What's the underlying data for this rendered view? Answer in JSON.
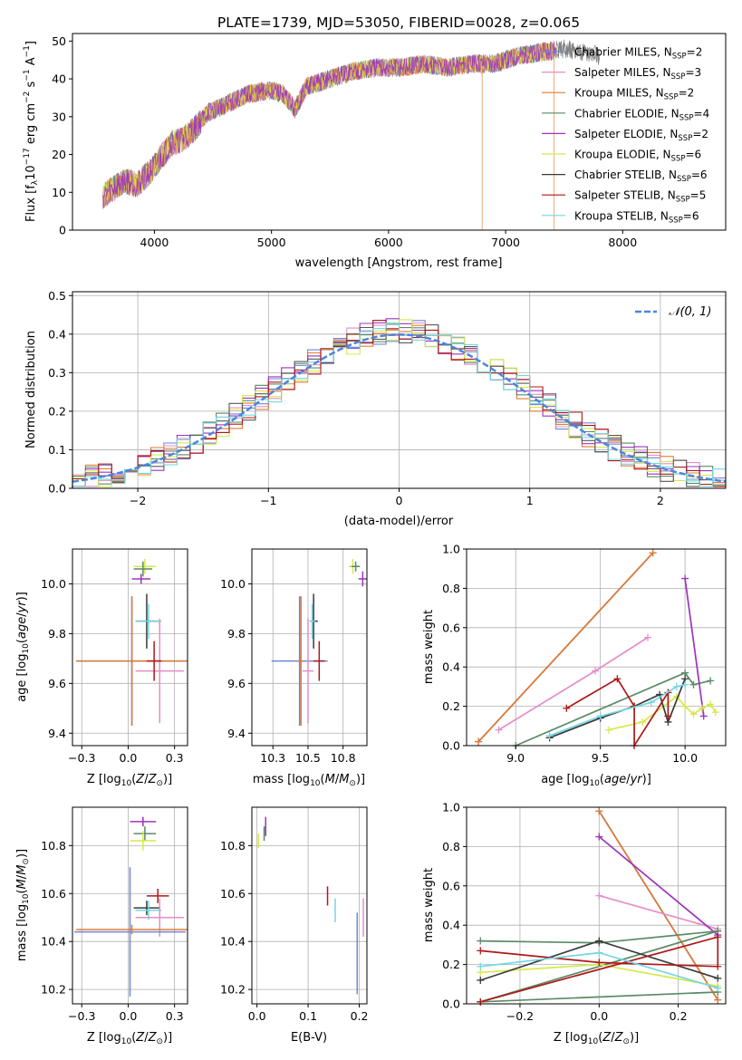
{
  "title": "PLATE=1739, MJD=53050, FIBERID=0028, z=0.065",
  "colors": {
    "c0": "#6f86d9",
    "c1": "#e58ec8",
    "c2": "#b5a03a",
    "c3": "#3c7a5c",
    "c4": "#9b34bd",
    "c5": "#d6e84a",
    "c6": "#3a3a3a",
    "c7": "#b01818",
    "c8": "#73d6e3",
    "orange": "#e07b33",
    "gray": "#7a7a7a",
    "grid": "#b0b0b0",
    "normal": "#4b86dc"
  },
  "legend_models": [
    {
      "base": "Chabrier MILES, N",
      "sub": "SSP",
      "val": "=2"
    },
    {
      "base": "Salpeter MILES, N",
      "sub": "SSP",
      "val": "=3"
    },
    {
      "base": "Kroupa MILES, N",
      "sub": "SSP",
      "val": "=2"
    },
    {
      "base": "Chabrier ELODIE, N",
      "sub": "SSP",
      "val": "=4"
    },
    {
      "base": "Salpeter ELODIE, N",
      "sub": "SSP",
      "val": "=2"
    },
    {
      "base": "Kroupa ELODIE, N",
      "sub": "SSP",
      "val": "=6"
    },
    {
      "base": "Chabrier STELIB, N",
      "sub": "SSP",
      "val": "=6"
    },
    {
      "base": "Salpeter STELIB, N",
      "sub": "SSP",
      "val": "=5"
    },
    {
      "base": "Kroupa STELIB, N",
      "sub": "SSP",
      "val": "=6"
    }
  ],
  "chart_data": [
    {
      "id": "spectrum",
      "type": "line",
      "xlabel": "wavelength [Angstrom, rest frame]",
      "ylabel": "Flux [f_λ 10^-17 erg cm^-2 s^-1 A^-1]",
      "xlim": [
        3300,
        8880
      ],
      "ylim": [
        0,
        52
      ],
      "xticks": [
        4000,
        5000,
        6000,
        7000,
        8000
      ],
      "yticks": [
        0,
        10,
        20,
        30,
        40,
        50
      ],
      "spectrum_knots": [
        [
          3560,
          9
        ],
        [
          3650,
          11
        ],
        [
          3750,
          13
        ],
        [
          3850,
          12
        ],
        [
          3950,
          15
        ],
        [
          4050,
          19
        ],
        [
          4150,
          23
        ],
        [
          4250,
          24
        ],
        [
          4350,
          27
        ],
        [
          4450,
          31
        ],
        [
          4600,
          33
        ],
        [
          4800,
          36
        ],
        [
          5000,
          37
        ],
        [
          5100,
          36
        ],
        [
          5200,
          32
        ],
        [
          5300,
          38
        ],
        [
          5500,
          40
        ],
        [
          5700,
          42
        ],
        [
          5900,
          43
        ],
        [
          6100,
          43
        ],
        [
          6300,
          44
        ],
        [
          6500,
          43
        ],
        [
          6700,
          44
        ],
        [
          6900,
          44
        ],
        [
          7100,
          46
        ],
        [
          7300,
          47
        ],
        [
          7500,
          48
        ],
        [
          7700,
          47
        ],
        [
          7800,
          46
        ]
      ],
      "dips": [
        {
          "x": 6800,
          "to": 0,
          "series": "Kroupa MILES"
        },
        {
          "x": 7415,
          "to": 0,
          "series": "Salpeter STELIB"
        }
      ],
      "legend_loc": "right",
      "grid": false
    },
    {
      "id": "residuals",
      "type": "histogram",
      "xlabel": "(data-model)/error",
      "ylabel": "Normed distribution",
      "xlim": [
        -2.5,
        2.5
      ],
      "ylim": [
        0,
        0.51
      ],
      "xticks": [
        -2,
        -1,
        0,
        1,
        2
      ],
      "yticks": [
        0.0,
        0.1,
        0.2,
        0.3,
        0.4,
        0.5
      ],
      "bin_width": 0.1,
      "reference_curve": {
        "name": "N(0,1)",
        "label_math": "𝒩(0, 1)",
        "mean": 0,
        "sigma": 1
      },
      "legend_loc": "top-right",
      "grid": true
    },
    {
      "id": "age_vs_Z",
      "type": "scatter",
      "xlabel": "Z [log10(Z/Z⊙)]",
      "ylabel": "age [log10(age/yr)]",
      "xlim": [
        -0.3,
        0.32
      ],
      "ylim": [
        9.35,
        10.14
      ],
      "xticks": [
        -0.25,
        0.0,
        0.25
      ],
      "yticks": [
        9.4,
        9.6,
        9.8,
        10.0
      ],
      "points": [
        {
          "series": "Kroupa ELODIE",
          "x": 0.09,
          "y": 10.07,
          "xerr": 0.06,
          "yerr": 0.03
        },
        {
          "series": "Chabrier ELODIE",
          "x": 0.08,
          "y": 10.06,
          "xerr": 0.05,
          "yerr": 0.03
        },
        {
          "series": "Salpeter ELODIE",
          "x": 0.07,
          "y": 10.02,
          "xerr": 0.05,
          "yerr": 0.02
        },
        {
          "series": "Chabrier STELIB",
          "x": 0.1,
          "y": 9.85,
          "xerr": 0.06,
          "yerr": 0.11
        },
        {
          "series": "Kroupa STELIB",
          "x": 0.11,
          "y": 9.85,
          "xerr": 0.07,
          "yerr": 0.07
        },
        {
          "series": "Chabrier MILES",
          "x": 0.02,
          "y": 9.69,
          "xerr": 0.3,
          "yerr": 0.26
        },
        {
          "series": "Kroupa MILES",
          "x": 0.02,
          "y": 9.69,
          "xerr": 0.3,
          "yerr": 0.26
        },
        {
          "series": "Salpeter MILES",
          "x": 0.17,
          "y": 9.65,
          "xerr": 0.13,
          "yerr": 0.21
        },
        {
          "series": "Salpeter STELIB",
          "x": 0.14,
          "y": 9.69,
          "xerr": 0.04,
          "yerr": 0.08
        }
      ],
      "grid": true
    },
    {
      "id": "age_vs_mass",
      "type": "scatter",
      "xlabel": "mass [log10(M/M⊙)]",
      "ylabel": "",
      "xlim": [
        10.1,
        10.92
      ],
      "ylim": [
        9.35,
        10.14
      ],
      "xticks": [
        10.25,
        10.5,
        10.75
      ],
      "yticks": [
        9.4,
        9.6,
        9.8,
        10.0
      ],
      "points": [
        {
          "series": "Kroupa ELODIE",
          "x": 10.82,
          "y": 10.07,
          "xerr": 0.03,
          "yerr": 0.03
        },
        {
          "series": "Chabrier ELODIE",
          "x": 10.84,
          "y": 10.07,
          "xerr": 0.03,
          "yerr": 0.02
        },
        {
          "series": "Salpeter ELODIE",
          "x": 10.89,
          "y": 10.02,
          "xerr": 0.03,
          "yerr": 0.03
        },
        {
          "series": "Chabrier STELIB",
          "x": 10.54,
          "y": 9.85,
          "xerr": 0.03,
          "yerr": 0.11
        },
        {
          "series": "Kroupa STELIB",
          "x": 10.53,
          "y": 9.85,
          "xerr": 0.02,
          "yerr": 0.07
        },
        {
          "series": "Chabrier MILES",
          "x": 10.44,
          "y": 9.69,
          "xerr": 0.2,
          "yerr": 0.26
        },
        {
          "series": "Kroupa MILES",
          "x": 10.45,
          "y": 9.69,
          "xerr": 0.02,
          "yerr": 0.26
        },
        {
          "series": "Salpeter MILES",
          "x": 10.5,
          "y": 9.65,
          "xerr": 0.04,
          "yerr": 0.21
        },
        {
          "series": "Salpeter STELIB",
          "x": 10.58,
          "y": 9.69,
          "xerr": 0.04,
          "yerr": 0.08
        }
      ],
      "grid": true
    },
    {
      "id": "weight_vs_age",
      "type": "line",
      "xlabel": "age [log10(age/yr)]",
      "ylabel": "mass weight",
      "xlim": [
        8.71,
        10.24
      ],
      "ylim": [
        0,
        1.0
      ],
      "xticks": [
        9.0,
        9.5,
        10.0
      ],
      "yticks": [
        0.0,
        0.2,
        0.4,
        0.6,
        0.8,
        1.0
      ],
      "series": [
        {
          "name": "Chabrier MILES",
          "x": [
            8.78,
            9.81
          ],
          "y": [
            0.02,
            0.98
          ]
        },
        {
          "name": "Kroupa MILES",
          "x": [
            8.78,
            9.81
          ],
          "y": [
            0.02,
            0.98
          ]
        },
        {
          "name": "Salpeter MILES",
          "x": [
            8.9,
            9.47,
            9.78
          ],
          "y": [
            0.08,
            0.38,
            0.55
          ]
        },
        {
          "name": "Chabrier ELODIE",
          "x": [
            9.0,
            10.0,
            10.05,
            10.15
          ],
          "y": [
            0.0,
            0.37,
            0.31,
            0.33
          ]
        },
        {
          "name": "Salpeter ELODIE",
          "x": [
            10.0,
            10.11
          ],
          "y": [
            0.85,
            0.15
          ]
        },
        {
          "name": "Kroupa ELODIE",
          "x": [
            9.55,
            9.75,
            9.95,
            10.0,
            10.05,
            10.1,
            10.15,
            10.18
          ],
          "y": [
            0.08,
            0.12,
            0.25,
            0.2,
            0.16,
            0.19,
            0.21,
            0.17
          ]
        },
        {
          "name": "Chabrier STELIB",
          "x": [
            9.2,
            9.5,
            9.7,
            9.85,
            9.9,
            10.0
          ],
          "y": [
            0.04,
            0.14,
            0.2,
            0.26,
            0.12,
            0.34
          ]
        },
        {
          "name": "Salpeter STELIB",
          "x": [
            9.3,
            9.6,
            9.7,
            9.7,
            9.9,
            9.9
          ],
          "y": [
            0.19,
            0.34,
            0.2,
            0.0,
            0.27,
            0.15
          ]
        },
        {
          "name": "Kroupa STELIB",
          "x": [
            9.2,
            9.5,
            9.8,
            9.95,
            10.0
          ],
          "y": [
            0.05,
            0.15,
            0.22,
            0.3,
            0.31
          ]
        }
      ],
      "grid": true
    },
    {
      "id": "mass_vs_Z",
      "type": "scatter",
      "xlabel": "Z [log10(Z/Z⊙)]",
      "ylabel": "mass [log10(M/M⊙)]",
      "xlim": [
        -0.3,
        0.32
      ],
      "ylim": [
        10.14,
        10.96
      ],
      "xticks": [
        -0.25,
        0.0,
        0.25
      ],
      "yticks": [
        10.2,
        10.4,
        10.6,
        10.8
      ],
      "points": [
        {
          "series": "Salpeter ELODIE",
          "x": 0.08,
          "y": 10.9,
          "xerr": 0.07,
          "yerr": 0.02
        },
        {
          "series": "Chabrier ELODIE",
          "x": 0.09,
          "y": 10.85,
          "xerr": 0.06,
          "yerr": 0.03
        },
        {
          "series": "Kroupa ELODIE",
          "x": 0.08,
          "y": 10.82,
          "xerr": 0.07,
          "yerr": 0.04
        },
        {
          "series": "Salpeter STELIB",
          "x": 0.16,
          "y": 10.59,
          "xerr": 0.06,
          "yerr": 0.03
        },
        {
          "series": "Chabrier STELIB",
          "x": 0.1,
          "y": 10.54,
          "xerr": 0.07,
          "yerr": 0.03
        },
        {
          "series": "Kroupa STELIB",
          "x": 0.11,
          "y": 10.53,
          "xerr": 0.07,
          "yerr": 0.04
        },
        {
          "series": "Salpeter MILES",
          "x": 0.17,
          "y": 10.5,
          "xerr": 0.13,
          "yerr": 0.08
        },
        {
          "series": "Chabrier MILES",
          "x": 0.01,
          "y": 10.44,
          "xerr": 0.3,
          "yerr": 0.27
        },
        {
          "series": "Kroupa MILES",
          "x": 0.02,
          "y": 10.45,
          "xerr": 0.3,
          "yerr": 0.02
        }
      ],
      "grid": true
    },
    {
      "id": "mass_vs_EBV",
      "type": "scatter",
      "xlabel": "E(B-V)",
      "ylabel": "",
      "xlim": [
        -0.01,
        0.215
      ],
      "ylim": [
        10.14,
        10.96
      ],
      "xticks": [
        0.0,
        0.1,
        0.2
      ],
      "yticks": [
        10.2,
        10.4,
        10.6,
        10.8
      ],
      "points": [
        {
          "series": "Salpeter ELODIE",
          "x": 0.017,
          "y": 10.88,
          "xerr": 0,
          "yerr": 0.04
        },
        {
          "series": "Chabrier ELODIE",
          "x": 0.014,
          "y": 10.85,
          "xerr": 0,
          "yerr": 0.03
        },
        {
          "series": "Kroupa ELODIE",
          "x": 0.003,
          "y": 10.82,
          "xerr": 0,
          "yerr": 0.03
        },
        {
          "series": "Salpeter STELIB",
          "x": 0.138,
          "y": 10.59,
          "xerr": 0,
          "yerr": 0.04
        },
        {
          "series": "Kroupa STELIB",
          "x": 0.153,
          "y": 10.53,
          "xerr": 0,
          "yerr": 0.05
        },
        {
          "series": "Chabrier MILES",
          "x": 0.196,
          "y": 10.35,
          "xerr": 0,
          "yerr": 0.17
        },
        {
          "series": "Salpeter MILES",
          "x": 0.208,
          "y": 10.5,
          "xerr": 0,
          "yerr": 0.08
        }
      ],
      "grid": true
    },
    {
      "id": "weight_vs_Z",
      "type": "line",
      "xlabel": "Z [log10(Z/Z⊙)]",
      "ylabel": "mass weight",
      "xlim": [
        -0.335,
        0.32
      ],
      "ylim": [
        0,
        1.0
      ],
      "xticks": [
        -0.2,
        0.0,
        0.2
      ],
      "yticks": [
        0.0,
        0.2,
        0.4,
        0.6,
        0.8,
        1.0
      ],
      "series": [
        {
          "name": "Chabrier MILES",
          "x": [
            0.0,
            0.3
          ],
          "y": [
            0.98,
            0.02
          ]
        },
        {
          "name": "Kroupa MILES",
          "x": [
            0.0,
            0.3
          ],
          "y": [
            0.98,
            0.02
          ]
        },
        {
          "name": "Salpeter MILES",
          "x": [
            0.0,
            0.3
          ],
          "y": [
            0.55,
            0.38
          ]
        },
        {
          "name": "Salpeter ELODIE",
          "x": [
            0.0,
            0.3
          ],
          "y": [
            0.85,
            0.35
          ]
        },
        {
          "name": "Chabrier ELODIE",
          "x": [
            -0.3,
            0.0,
            0.3,
            -0.3,
            0.3
          ],
          "y": [
            0.32,
            0.31,
            0.37,
            0.01,
            0.06
          ]
        },
        {
          "name": "Kroupa ELODIE",
          "x": [
            -0.3,
            0.0,
            0.3
          ],
          "y": [
            0.16,
            0.2,
            0.09
          ]
        },
        {
          "name": "Chabrier STELIB",
          "x": [
            -0.3,
            0.0,
            0.3
          ],
          "y": [
            0.12,
            0.32,
            0.13
          ]
        },
        {
          "name": "Salpeter STELIB",
          "x": [
            -0.3,
            0.0,
            0.3,
            0.3,
            -0.3
          ],
          "y": [
            0.27,
            0.21,
            0.19,
            0.34,
            0.01
          ]
        },
        {
          "name": "Kroupa STELIB",
          "x": [
            -0.3,
            0.0,
            0.3
          ],
          "y": [
            0.19,
            0.26,
            0.08
          ]
        }
      ],
      "grid": true
    }
  ]
}
